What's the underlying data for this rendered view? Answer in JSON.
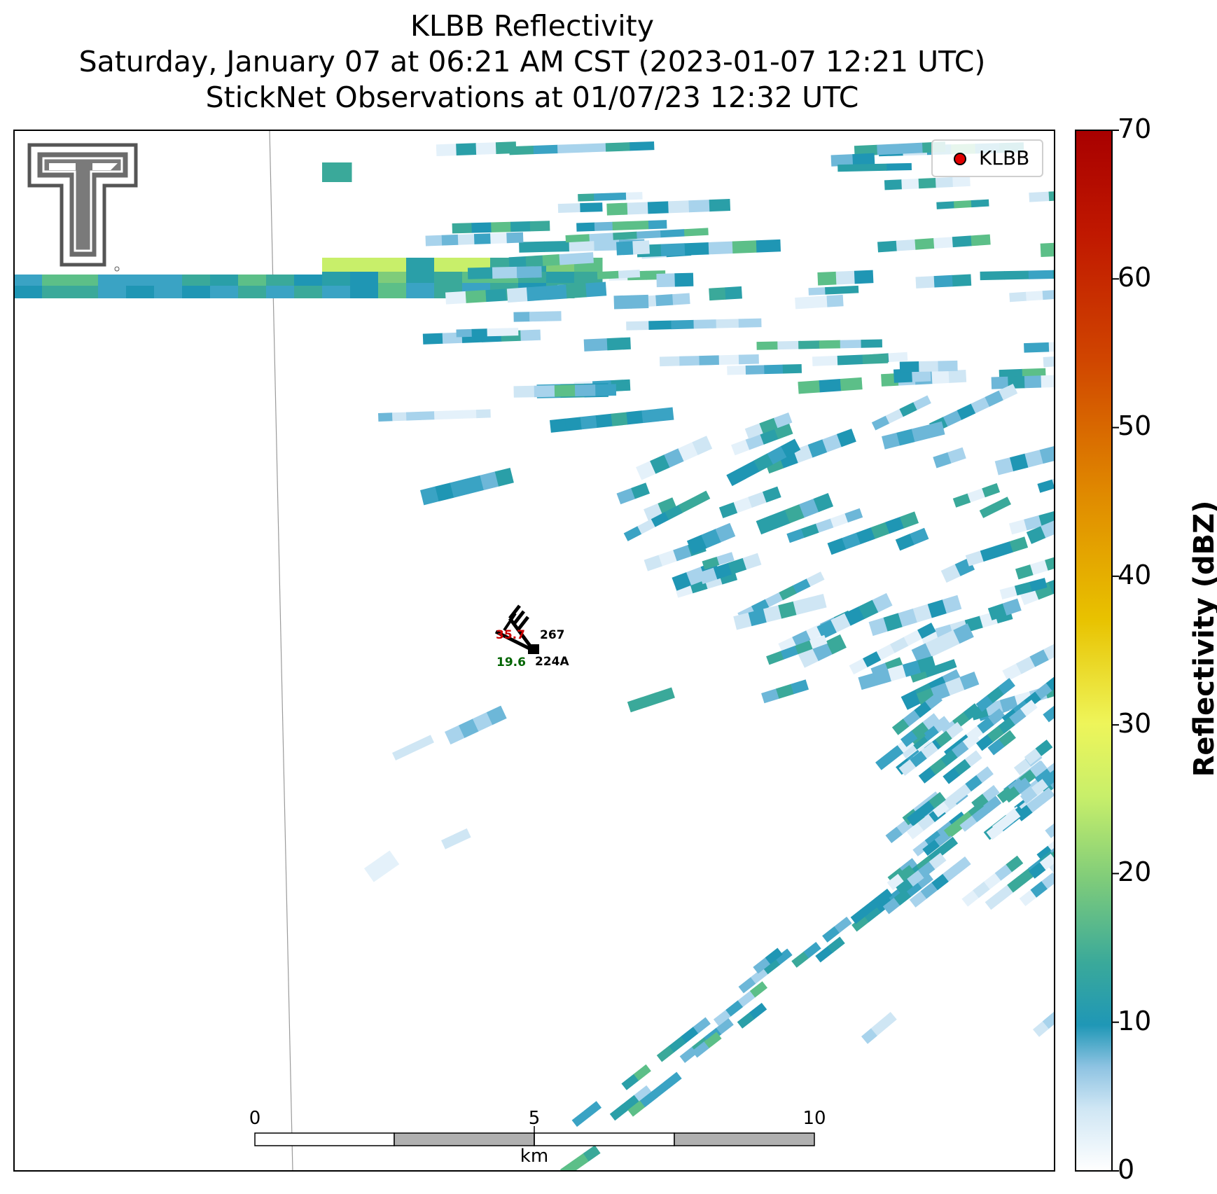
{
  "title": {
    "line1": "KLBB Reflectivity",
    "line2": "Saturday, January 07 at 06:21 AM CST (2023-01-07 12:21 UTC)",
    "line3": "StickNet Observations at 01/07/23 12:32 UTC"
  },
  "legend": {
    "label": "KLBB",
    "marker_color": "#e00000"
  },
  "colorbar": {
    "label": "Reflectivity (dBZ)",
    "ticks": [
      "0",
      "10",
      "20",
      "30",
      "40",
      "50",
      "60",
      "70"
    ],
    "range": [
      0,
      70
    ]
  },
  "scalebar": {
    "ticks": [
      "0",
      "5",
      "10"
    ],
    "unit": "km"
  },
  "stations": {
    "a": {
      "id": "267",
      "temp": "35.7",
      "temp_color": "#cc0000"
    },
    "b": {
      "id": "224A",
      "dewpoint": "19.6",
      "dewpoint_color": "#006400"
    }
  },
  "logo": {
    "name": "Texas Tech Double T"
  }
}
